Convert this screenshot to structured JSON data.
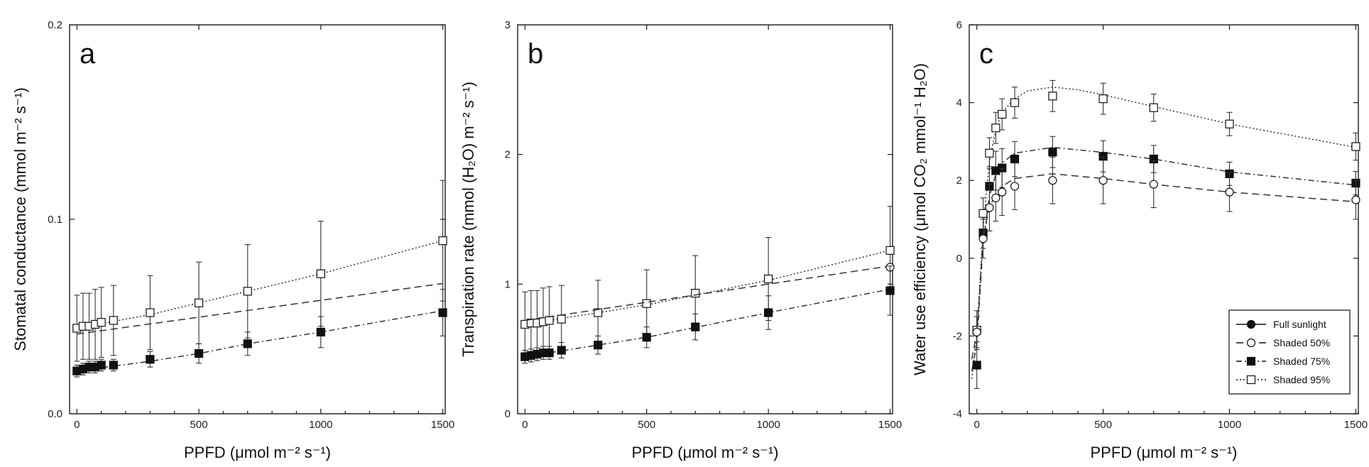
{
  "chart_data": [
    {
      "type": "scatter",
      "panel_label": "a",
      "xlabel": "PPFD (μmol m⁻² s⁻¹)",
      "ylabel": "Stomatal conductance (mmol m⁻² s⁻¹)",
      "xlim": [
        -30,
        1510
      ],
      "ylim": [
        0.0,
        0.2
      ],
      "xticks": [
        0,
        500,
        1000,
        1500
      ],
      "yticks": [
        0.0,
        0.1,
        0.2
      ],
      "ytick_labels": [
        "0.0",
        "0.1",
        "0.2"
      ],
      "series": [
        {
          "style": "dotted",
          "marker": "open-square",
          "x": [
            0,
            25,
            50,
            75,
            100,
            150,
            300,
            500,
            700,
            1000,
            1500
          ],
          "y": [
            0.044,
            0.045,
            0.045,
            0.046,
            0.047,
            0.048,
            0.052,
            0.057,
            0.063,
            0.072,
            0.089
          ],
          "err": [
            0.017,
            0.017,
            0.017,
            0.018,
            0.018,
            0.018,
            0.019,
            0.021,
            0.024,
            0.027,
            0.031
          ],
          "fit": [
            [
              0,
              0.044
            ],
            [
              300,
              0.051
            ],
            [
              500,
              0.057
            ],
            [
              700,
              0.063
            ],
            [
              1000,
              0.072
            ],
            [
              1500,
              0.089
            ]
          ]
        },
        {
          "style": "dashed",
          "marker": "none",
          "x": [],
          "y": [],
          "err": [],
          "fit": [
            [
              0,
              0.041
            ],
            [
              1500,
              0.067
            ]
          ]
        },
        {
          "style": "dashdot",
          "marker": "filled-square",
          "x": [
            0,
            25,
            50,
            75,
            100,
            150,
            300,
            500,
            700,
            1000,
            1500
          ],
          "y": [
            0.022,
            0.023,
            0.024,
            0.024,
            0.025,
            0.025,
            0.028,
            0.031,
            0.036,
            0.042,
            0.052
          ],
          "err": [
            0.003,
            0.003,
            0.003,
            0.003,
            0.003,
            0.003,
            0.004,
            0.005,
            0.006,
            0.008,
            0.012
          ],
          "fit": [
            [
              0,
              0.022
            ],
            [
              300,
              0.027
            ],
            [
              500,
              0.031
            ],
            [
              700,
              0.036
            ],
            [
              1000,
              0.042
            ],
            [
              1500,
              0.053
            ]
          ]
        }
      ]
    },
    {
      "type": "scatter",
      "panel_label": "b",
      "xlabel": "PPFD (μmol m⁻² s⁻¹)",
      "ylabel": "Transpiration rate (mmol (H₂O) m⁻² s⁻¹)",
      "xlim": [
        -30,
        1510
      ],
      "ylim": [
        0,
        3
      ],
      "xticks": [
        0,
        500,
        1000,
        1500
      ],
      "yticks": [
        0,
        1,
        2,
        3
      ],
      "ytick_labels": [
        "0",
        "1",
        "2",
        "3"
      ],
      "series": [
        {
          "style": "dotted",
          "marker": "open-square",
          "x": [
            0,
            25,
            50,
            75,
            100,
            150,
            300,
            500,
            700,
            1000,
            1500
          ],
          "y": [
            0.69,
            0.7,
            0.7,
            0.71,
            0.72,
            0.73,
            0.78,
            0.85,
            0.93,
            1.04,
            1.26
          ],
          "err": [
            0.25,
            0.25,
            0.25,
            0.26,
            0.26,
            0.26,
            0.25,
            0.26,
            0.29,
            0.32,
            0.34
          ],
          "fit": [
            [
              0,
              0.69
            ],
            [
              500,
              0.84
            ],
            [
              1000,
              1.03
            ],
            [
              1500,
              1.26
            ]
          ]
        },
        {
          "style": "dashed",
          "marker": "open-circle",
          "x": [
            1500
          ],
          "y": [
            1.13
          ],
          "err": [
            0
          ],
          "fit": [
            [
              0,
              0.72
            ],
            [
              500,
              0.86
            ],
            [
              1000,
              1.0
            ],
            [
              1500,
              1.14
            ]
          ]
        },
        {
          "style": "dashdot",
          "marker": "filled-square",
          "x": [
            0,
            25,
            50,
            75,
            100,
            150,
            300,
            500,
            700,
            1000,
            1500
          ],
          "y": [
            0.44,
            0.45,
            0.46,
            0.47,
            0.47,
            0.49,
            0.53,
            0.59,
            0.67,
            0.78,
            0.95
          ],
          "err": [
            0.05,
            0.05,
            0.05,
            0.05,
            0.05,
            0.06,
            0.07,
            0.08,
            0.1,
            0.13,
            0.19
          ],
          "fit": [
            [
              0,
              0.44
            ],
            [
              500,
              0.59
            ],
            [
              1000,
              0.78
            ],
            [
              1500,
              0.96
            ]
          ]
        }
      ]
    },
    {
      "type": "scatter",
      "panel_label": "c",
      "xlabel": "PPFD (μmol m⁻² s⁻¹)",
      "ylabel": "Water use efficiency (μmol CO₂ mmol⁻¹ H₂O)",
      "xlim": [
        -30,
        1510
      ],
      "ylim": [
        -4,
        6
      ],
      "xticks": [
        0,
        500,
        1000,
        1500
      ],
      "yticks": [
        -4,
        -2,
        0,
        2,
        4,
        6
      ],
      "ytick_labels": [
        "-4",
        "-2",
        "0",
        "2",
        "4",
        "6"
      ],
      "legend": {
        "position": "bottom-right",
        "entries": [
          {
            "label": "Full sunlight",
            "marker": "filled-circle",
            "style": "solid"
          },
          {
            "label": "Shaded 50%",
            "marker": "open-circle",
            "style": "dashed"
          },
          {
            "label": "Shaded 75%",
            "marker": "filled-square",
            "style": "dashdot"
          },
          {
            "label": "Shaded 95%",
            "marker": "open-square",
            "style": "dotted"
          }
        ]
      },
      "series": [
        {
          "style": "dotted",
          "marker": "open-square",
          "x": [
            0,
            25,
            50,
            75,
            100,
            150,
            300,
            500,
            700,
            1000,
            1500
          ],
          "y": [
            -1.85,
            1.15,
            2.7,
            3.35,
            3.7,
            4.0,
            4.17,
            4.1,
            3.87,
            3.45,
            2.87
          ],
          "err": [
            0.5,
            0.4,
            0.4,
            0.4,
            0.4,
            0.4,
            0.4,
            0.4,
            0.35,
            0.3,
            0.35
          ],
          "fit": [
            [
              -20,
              -3.1
            ],
            [
              0,
              -2.0
            ],
            [
              25,
              0.8
            ],
            [
              50,
              2.5
            ],
            [
              75,
              3.3
            ],
            [
              100,
              3.75
            ],
            [
              150,
              4.1
            ],
            [
              200,
              4.3
            ],
            [
              300,
              4.4
            ],
            [
              400,
              4.33
            ],
            [
              500,
              4.2
            ],
            [
              700,
              3.9
            ],
            [
              1000,
              3.45
            ],
            [
              1500,
              2.85
            ]
          ]
        },
        {
          "style": "dashdot",
          "marker": "filled-square",
          "x": [
            0,
            25,
            50,
            75,
            100,
            150,
            300,
            500,
            700,
            1000,
            1500
          ],
          "y": [
            -2.75,
            0.65,
            1.85,
            2.25,
            2.32,
            2.55,
            2.73,
            2.62,
            2.55,
            2.17,
            1.93
          ],
          "err": [
            0.6,
            0.4,
            0.5,
            0.5,
            0.5,
            0.45,
            0.4,
            0.4,
            0.35,
            0.3,
            0.3
          ],
          "fit": [
            [
              -20,
              -2.9
            ],
            [
              0,
              -2.2
            ],
            [
              25,
              0.4
            ],
            [
              50,
              1.6
            ],
            [
              75,
              2.15
            ],
            [
              100,
              2.45
            ],
            [
              150,
              2.7
            ],
            [
              300,
              2.85
            ],
            [
              500,
              2.72
            ],
            [
              700,
              2.55
            ],
            [
              1000,
              2.22
            ],
            [
              1500,
              1.88
            ]
          ]
        },
        {
          "style": "dashed",
          "marker": "open-circle",
          "x": [
            0,
            25,
            50,
            75,
            100,
            150,
            300,
            500,
            700,
            1000,
            1500
          ],
          "y": [
            -1.9,
            0.5,
            1.3,
            1.55,
            1.7,
            1.85,
            2.0,
            2.0,
            1.9,
            1.7,
            1.5
          ],
          "err": [
            0.4,
            0.5,
            0.6,
            0.6,
            0.6,
            0.6,
            0.6,
            0.6,
            0.6,
            0.5,
            0.5
          ],
          "fit": [
            [
              -20,
              -2.6
            ],
            [
              0,
              -1.9
            ],
            [
              25,
              0.5
            ],
            [
              50,
              1.35
            ],
            [
              100,
              1.85
            ],
            [
              150,
              2.05
            ],
            [
              300,
              2.17
            ],
            [
              500,
              2.05
            ],
            [
              700,
              1.9
            ],
            [
              1000,
              1.7
            ],
            [
              1500,
              1.45
            ]
          ]
        }
      ]
    }
  ]
}
